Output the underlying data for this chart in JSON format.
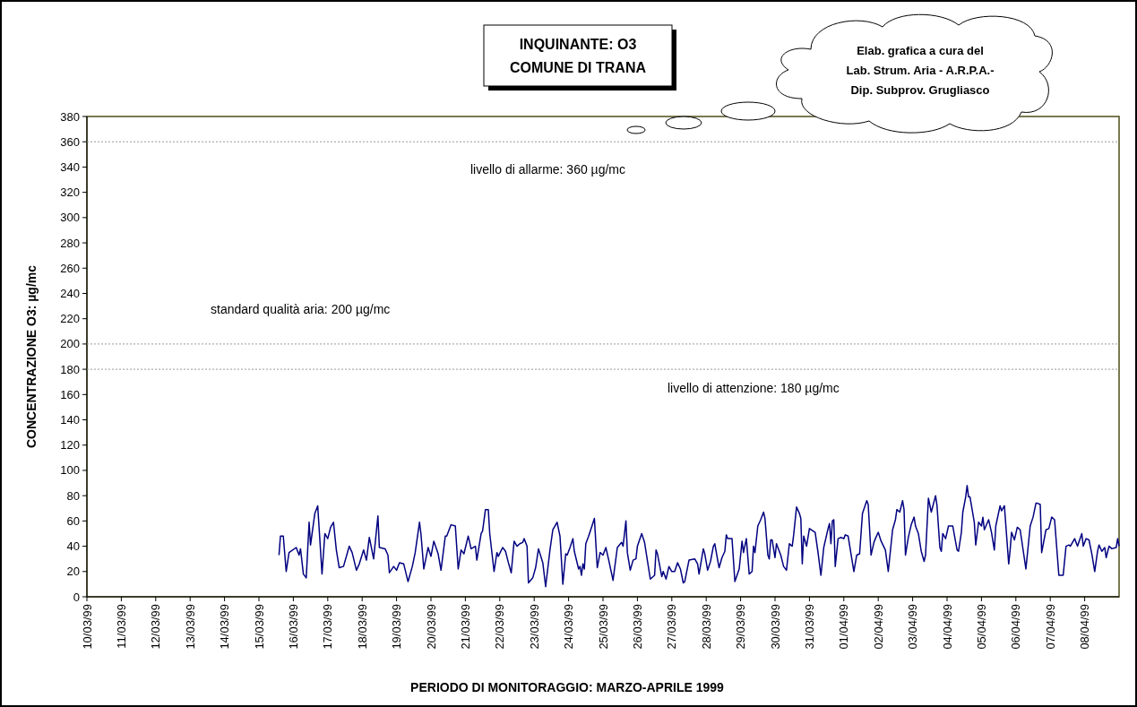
{
  "chart_data": {
    "type": "line",
    "title": "INQUINANTE: O3",
    "subtitle": "COMUNE DI TRANA",
    "xlabel": "PERIODO DI MONITORAGGIO: MARZO-APRILE 1999",
    "ylabel": "CONCENTRAZIONE O3: µg/mc",
    "annotations": [
      "Elab. grafica a cura del\nLab. Strum. Aria - A.R.P.A.-\nDip. Subprov. Grugliasco"
    ],
    "xlim": [
      "1999-03-10",
      "1999-04-09"
    ],
    "xticks": [
      {
        "value": "1999-03-10",
        "label": "10/03/99"
      },
      {
        "value": "1999-03-11",
        "label": "11/03/99"
      },
      {
        "value": "1999-03-12",
        "label": "12/03/99"
      },
      {
        "value": "1999-03-13",
        "label": "13/03/99"
      },
      {
        "value": "1999-03-14",
        "label": "14/03/99"
      },
      {
        "value": "1999-03-15",
        "label": "15/03/99"
      },
      {
        "value": "1999-03-16",
        "label": "16/03/99"
      },
      {
        "value": "1999-03-17",
        "label": "17/03/99"
      },
      {
        "value": "1999-03-18",
        "label": "18/03/99"
      },
      {
        "value": "1999-03-19",
        "label": "19/03/99"
      },
      {
        "value": "1999-03-20",
        "label": "20/03/99"
      },
      {
        "value": "1999-03-21",
        "label": "21/03/99"
      },
      {
        "value": "1999-03-22",
        "label": "22/03/99"
      },
      {
        "value": "1999-03-23",
        "label": "23/03/99"
      },
      {
        "value": "1999-03-24",
        "label": "24/03/99"
      },
      {
        "value": "1999-03-25",
        "label": "25/03/99"
      },
      {
        "value": "1999-03-26",
        "label": "26/03/99"
      },
      {
        "value": "1999-03-27",
        "label": "27/03/99"
      },
      {
        "value": "1999-03-28",
        "label": "28/03/99"
      },
      {
        "value": "1999-03-29",
        "label": "29/03/99"
      },
      {
        "value": "1999-03-30",
        "label": "30/03/99"
      },
      {
        "value": "1999-03-31",
        "label": "31/03/99"
      },
      {
        "value": "1999-04-01",
        "label": "01/04/99"
      },
      {
        "value": "1999-04-02",
        "label": "02/04/99"
      },
      {
        "value": "1999-04-03",
        "label": "03/04/99"
      },
      {
        "value": "1999-04-04",
        "label": "04/04/99"
      },
      {
        "value": "1999-04-05",
        "label": "05/04/99"
      },
      {
        "value": "1999-04-06",
        "label": "06/04/99"
      },
      {
        "value": "1999-04-07",
        "label": "07/04/99"
      },
      {
        "value": "1999-04-08",
        "label": "08/04/99"
      }
    ],
    "ylim": [
      0,
      380
    ],
    "yticks": [
      0,
      20,
      40,
      60,
      80,
      100,
      120,
      140,
      160,
      180,
      200,
      220,
      240,
      260,
      280,
      300,
      320,
      340,
      360,
      380
    ],
    "grid": false,
    "marker": "none",
    "line_style": "solid",
    "ref_lines": [
      {
        "axis": "y",
        "value": 360,
        "label": "livello di allarme: 360 µg/mc",
        "color": "#999999",
        "line_style": "dotted"
      },
      {
        "axis": "y",
        "value": 200,
        "label": "standard qualità aria: 200 µg/mc",
        "color": "#999999",
        "line_style": "dotted"
      },
      {
        "axis": "y",
        "value": 180,
        "label": "livello di attenzione: 180 µg/mc",
        "color": "#999999",
        "line_style": "dotted"
      }
    ],
    "series": [
      {
        "color": "#000080",
        "x": [
          "1999-03-15T14:00",
          "1999-03-15T15:00",
          "1999-03-15T17:00",
          "1999-03-15T19:00",
          "1999-03-15T21:00",
          "1999-03-16T02:00",
          "1999-03-16T04:00",
          "1999-03-16T05:00",
          "1999-03-16T07:00",
          "1999-03-16T09:00",
          "1999-03-16T11:00",
          "1999-03-16T12:00",
          "1999-03-16T15:00",
          "1999-03-16T17:00",
          "1999-03-16T20:00",
          "1999-03-16T22:00",
          "1999-03-17T00:00",
          "1999-03-17T02:00",
          "1999-03-17T04:00",
          "1999-03-17T06:00",
          "1999-03-17T08:00",
          "1999-03-17T11:00",
          "1999-03-17T15:00",
          "1999-03-17T17:00",
          "1999-03-17T20:00",
          "1999-03-17T22:00",
          "1999-03-18T01:00",
          "1999-03-18T03:00",
          "1999-03-18T05:00",
          "1999-03-18T08:00",
          "1999-03-18T11:00",
          "1999-03-18T12:00",
          "1999-03-18T16:00",
          "1999-03-18T18:00",
          "1999-03-18T19:00",
          "1999-03-18T22:00",
          "1999-03-19T00:00",
          "1999-03-19T02:00",
          "1999-03-19T05:00",
          "1999-03-19T08:00",
          "1999-03-19T11:00",
          "1999-03-19T13:00",
          "1999-03-19T16:00",
          "1999-03-19T17:00",
          "1999-03-19T19:00",
          "1999-03-19T22:00",
          "1999-03-20T00:00",
          "1999-03-20T02:00",
          "1999-03-20T05:00",
          "1999-03-20T07:00",
          "1999-03-20T10:00",
          "1999-03-20T11:00",
          "1999-03-20T14:00",
          "1999-03-20T17:00",
          "1999-03-20T19:00",
          "1999-03-20T21:00",
          "1999-03-20T23:00",
          "1999-03-21T02:00",
          "1999-03-21T04:00",
          "1999-03-21T07:00",
          "1999-03-21T08:00",
          "1999-03-21T11:00",
          "1999-03-21T12:00",
          "1999-03-21T14:00",
          "1999-03-21T16:00",
          "1999-03-21T17:00",
          "1999-03-21T20:00",
          "1999-03-21T22:00",
          "1999-03-21T23:00",
          "1999-03-22T02:00",
          "1999-03-22T04:00",
          "1999-03-22T06:00",
          "1999-03-22T08:00",
          "1999-03-22T10:00",
          "1999-03-22T12:00",
          "1999-03-22T14:00",
          "1999-03-22T16:00",
          "1999-03-22T17:00",
          "1999-03-22T19:00",
          "1999-03-22T20:00",
          "1999-03-22T23:00",
          "1999-03-23T01:00",
          "1999-03-23T03:00",
          "1999-03-23T06:00",
          "1999-03-23T08:00",
          "1999-03-23T11:00",
          "1999-03-23T13:00",
          "1999-03-23T16:00",
          "1999-03-23T18:00",
          "1999-03-23T20:00",
          "1999-03-23T22:00",
          "1999-03-23T23:00",
          "1999-03-24T01:00",
          "1999-03-24T03:00",
          "1999-03-24T04:00",
          "1999-03-24T07:00",
          "1999-03-24T08:00",
          "1999-03-24T09:00",
          "1999-03-24T10:00",
          "1999-03-24T11:00",
          "1999-03-24T12:00",
          "1999-03-24T14:00",
          "1999-03-24T16:00",
          "1999-03-24T18:00",
          "1999-03-24T20:00",
          "1999-03-24T22:00",
          "1999-03-25T00:00",
          "1999-03-25T02:00",
          "1999-03-25T04:00",
          "1999-03-25T07:00",
          "1999-03-25T10:00",
          "1999-03-25T13:00",
          "1999-03-25T14:00",
          "1999-03-25T16:00",
          "1999-03-25T17:00",
          "1999-03-25T19:00",
          "1999-03-25T21:00",
          "1999-03-25T23:00",
          "1999-03-26T00:00",
          "1999-03-26T03:00",
          "1999-03-26T05:00",
          "1999-03-26T09:00",
          "1999-03-26T12:00",
          "1999-03-26T13:00",
          "1999-03-26T14:00",
          "1999-03-26T17:00",
          "1999-03-26T18:00",
          "1999-03-26T20:00",
          "1999-03-26T22:00",
          "1999-03-27T00:00",
          "1999-03-27T02:00",
          "1999-03-27T04:00",
          "1999-03-27T06:00",
          "1999-03-27T08:00",
          "1999-03-27T09:00",
          "1999-03-27T12:00",
          "1999-03-27T16:00",
          "1999-03-27T18:00",
          "1999-03-27T19:00",
          "1999-03-27T22:00",
          "1999-03-27T23:00",
          "1999-03-28T01:00",
          "1999-03-28T03:00",
          "1999-03-28T05:00",
          "1999-03-28T06:00",
          "1999-03-28T08:00",
          "1999-03-28T09:00",
          "1999-03-28T11:00",
          "1999-03-28T13:00",
          "1999-03-28T14:00",
          "1999-03-28T15:00",
          "1999-03-28T18:00",
          "1999-03-28T20:00",
          "1999-03-28T23:00",
          "1999-03-29T01:00",
          "1999-03-29T02:00",
          "1999-03-29T04:00",
          "1999-03-29T06:00",
          "1999-03-29T08:00",
          "1999-03-29T09:00",
          "1999-03-29T10:00",
          "1999-03-29T12:00",
          "1999-03-29T14:00",
          "1999-03-29T16:00",
          "1999-03-29T17:00",
          "1999-03-29T19:00",
          "1999-03-29T20:00",
          "1999-03-29T21:00",
          "1999-03-29T22:00",
          "1999-03-30T00:00",
          "1999-03-30T01:00",
          "1999-03-30T04:00",
          "1999-03-30T06:00",
          "1999-03-30T08:00",
          "1999-03-30T10:00",
          "1999-03-30T12:00",
          "1999-03-30T13:00",
          "1999-03-30T15:00",
          "1999-03-30T17:00",
          "1999-03-30T18:00",
          "1999-03-30T19:00",
          "1999-03-30T20:00",
          "1999-03-30T22:00",
          "1999-03-31T00:00",
          "1999-03-31T04:00",
          "1999-03-31T06:00",
          "1999-03-31T08:00",
          "1999-03-31T10:00",
          "1999-03-31T13:00",
          "1999-03-31T14:00",
          "1999-03-31T15:00",
          "1999-03-31T16:00",
          "1999-03-31T17:00",
          "1999-03-31T18:00",
          "1999-03-31T20:00",
          "1999-03-31T22:00",
          "1999-04-01T00:00",
          "1999-04-01T01:00",
          "1999-04-01T03:00",
          "1999-04-01T07:00",
          "1999-04-01T09:00",
          "1999-04-01T11:00",
          "1999-04-01T13:00",
          "1999-04-01T16:00",
          "1999-04-01T17:00",
          "1999-04-01T19:00",
          "1999-04-01T21:00",
          "1999-04-01T22:00",
          "1999-04-02T00:00",
          "1999-04-02T02:00",
          "1999-04-02T05:00",
          "1999-04-02T07:00",
          "1999-04-02T10:00",
          "1999-04-02T12:00",
          "1999-04-02T13:00",
          "1999-04-02T15:00",
          "1999-04-02T17:00",
          "1999-04-02T18:00",
          "1999-04-02T19:00",
          "1999-04-02T21:00",
          "1999-04-02T23:00",
          "1999-04-03T01:00",
          "1999-04-03T02:00",
          "1999-04-03T04:00",
          "1999-04-03T06:00",
          "1999-04-03T08:00",
          "1999-04-03T09:00",
          "1999-04-03T11:00",
          "1999-04-03T13:00",
          "1999-04-03T16:00",
          "1999-04-03T17:00",
          "1999-04-03T19:00",
          "1999-04-03T20:00",
          "1999-04-03T21:00",
          "1999-04-03T23:00",
          "1999-04-04T01:00",
          "1999-04-04T04:00",
          "1999-04-04T07:00",
          "1999-04-04T08:00",
          "1999-04-04T10:00",
          "1999-04-04T11:00",
          "1999-04-04T13:00",
          "1999-04-04T14:00",
          "1999-04-04T15:00",
          "1999-04-04T16:00",
          "1999-04-04T19:00",
          "1999-04-04T20:00",
          "1999-04-04T22:00",
          "1999-04-05T00:00",
          "1999-04-05T01:00",
          "1999-04-05T02:00",
          "1999-04-05T05:00",
          "1999-04-05T07:00",
          "1999-04-05T09:00",
          "1999-04-05T10:00",
          "1999-04-05T13:00",
          "1999-04-05T14:00",
          "1999-04-05T16:00",
          "1999-04-05T19:00",
          "1999-04-05T20:00",
          "1999-04-05T21:00",
          "1999-04-05T23:00",
          "1999-04-06T01:00",
          "1999-04-06T03:00",
          "1999-04-06T07:00",
          "1999-04-06T10:00",
          "1999-04-06T12:00",
          "1999-04-06T14:00",
          "1999-04-06T15:00",
          "1999-04-06T17:00",
          "1999-04-06T18:00",
          "1999-04-06T21:00",
          "1999-04-06T23:00",
          "1999-04-07T01:00",
          "1999-04-07T03:00",
          "1999-04-07T06:00",
          "1999-04-07T09:00",
          "1999-04-07T11:00",
          "1999-04-07T13:00",
          "1999-04-07T14:00",
          "1999-04-07T17:00",
          "1999-04-07T19:00",
          "1999-04-07T22:00",
          "1999-04-07T23:00",
          "1999-04-08T01:00",
          "1999-04-08T03:00",
          "1999-04-08T05:00",
          "1999-04-08T07:00",
          "1999-04-08T09:00",
          "1999-04-08T10:00",
          "1999-04-08T12:00",
          "1999-04-08T14:00",
          "1999-04-08T15:00",
          "1999-04-08T17:00",
          "1999-04-08T19:00",
          "1999-04-08T22:00",
          "1999-04-08T23:00",
          "1999-04-09T00:00"
        ],
        "values": [
          33,
          48,
          48,
          20,
          35,
          39,
          33,
          38,
          18,
          15,
          59,
          41,
          66,
          72,
          18,
          50,
          46,
          55,
          59,
          37,
          23,
          24,
          40,
          35,
          21,
          26,
          37,
          29,
          47,
          30,
          64,
          39,
          38,
          33,
          19,
          24,
          21,
          27,
          26,
          12,
          24,
          35,
          59,
          50,
          22,
          39,
          32,
          44,
          34,
          21,
          48,
          48,
          57,
          56,
          22,
          37,
          34,
          48,
          38,
          40,
          29,
          50,
          52,
          69,
          69,
          50,
          20,
          35,
          32,
          39,
          36,
          27,
          19,
          44,
          40,
          42,
          43,
          46,
          40,
          11,
          15,
          23,
          38,
          27,
          8,
          37,
          53,
          59,
          48,
          10,
          34,
          33,
          39,
          46,
          36,
          22,
          24,
          17,
          26,
          22,
          42,
          48,
          55,
          62,
          23,
          35,
          33,
          39,
          29,
          13,
          39,
          43,
          40,
          60,
          35,
          21,
          29,
          30,
          40,
          50,
          43,
          14,
          17,
          37,
          34,
          16,
          20,
          14,
          24,
          20,
          20,
          27,
          22,
          11,
          12,
          29,
          30,
          26,
          18,
          38,
          34,
          21,
          28,
          40,
          42,
          29,
          23,
          31,
          36,
          49,
          46,
          46,
          12,
          22,
          44,
          35,
          46,
          18,
          20,
          40,
          35,
          56,
          61,
          67,
          62,
          33,
          30,
          45,
          45,
          31,
          42,
          33,
          24,
          21,
          42,
          40,
          49,
          71,
          66,
          62,
          26,
          48,
          40,
          54,
          51,
          35,
          17,
          39,
          54,
          58,
          42,
          60,
          61,
          24,
          46,
          47,
          46,
          49,
          48,
          20,
          33,
          34,
          66,
          76,
          73,
          33,
          43,
          46,
          51,
          44,
          37,
          20,
          53,
          61,
          69,
          67,
          76,
          69,
          33,
          47,
          57,
          63,
          56,
          50,
          36,
          28,
          33,
          78,
          67,
          80,
          72,
          39,
          36,
          50,
          46,
          56,
          56,
          37,
          36,
          51,
          67,
          79,
          88,
          79,
          79,
          59,
          41,
          59,
          56,
          63,
          53,
          61,
          51,
          37,
          56,
          72,
          68,
          72,
          26,
          37,
          51,
          45,
          55,
          53,
          22,
          56,
          63,
          74,
          74,
          73,
          35,
          53,
          54,
          63,
          61,
          17,
          17,
          40,
          41,
          40,
          46,
          40,
          50,
          40,
          46,
          45,
          34,
          20,
          36,
          41,
          36,
          39,
          31,
          40,
          38,
          39,
          46,
          40
        ]
      }
    ]
  }
}
